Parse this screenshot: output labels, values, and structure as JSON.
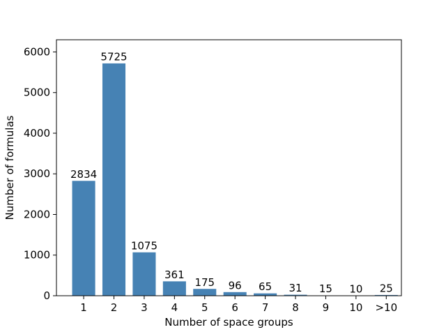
{
  "chart_data": {
    "type": "bar",
    "categories": [
      "1",
      "2",
      "3",
      "4",
      "5",
      "6",
      "7",
      "8",
      "9",
      "10",
      ">10"
    ],
    "values": [
      2834,
      5725,
      1075,
      361,
      175,
      96,
      65,
      31,
      15,
      10,
      25
    ],
    "xlabel": "Number of space groups",
    "ylabel": "Number of formulas",
    "ylim": [
      0,
      6300
    ],
    "yticks": [
      0,
      1000,
      2000,
      3000,
      4000,
      5000,
      6000
    ],
    "grid": false,
    "legend": "none",
    "bar_color": "#4682b4"
  }
}
